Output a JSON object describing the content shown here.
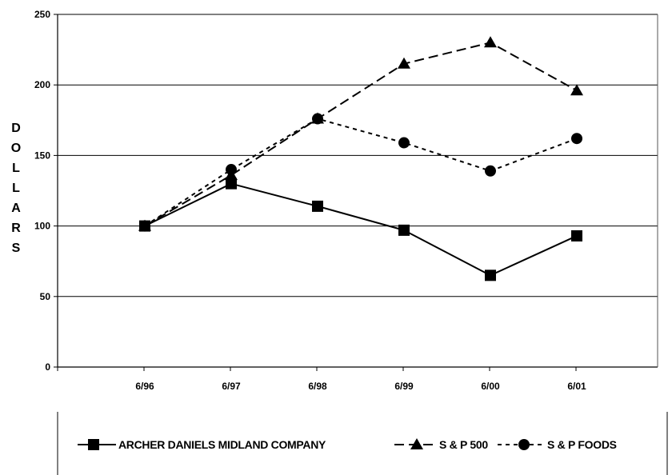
{
  "chart_data": {
    "type": "line",
    "title": "",
    "xlabel": "",
    "ylabel": "DOLLARS",
    "ylim": [
      0,
      250
    ],
    "yticks": [
      0,
      50,
      100,
      150,
      200,
      250
    ],
    "categories": [
      "6/96",
      "6/97",
      "6/98",
      "6/99",
      "6/00",
      "6/01"
    ],
    "grid": "horizontal",
    "legend_position": "bottom",
    "series": [
      {
        "name": "ARCHER DANIELS MIDLAND COMPANY",
        "marker": "square",
        "line": "solid",
        "values": [
          100,
          130,
          114,
          97,
          65,
          93
        ]
      },
      {
        "name": "S & P 500",
        "marker": "triangle",
        "line": "dashed",
        "values": [
          100,
          136,
          176,
          215,
          230,
          196
        ]
      },
      {
        "name": "S & P FOODS",
        "marker": "circle",
        "line": "dotted",
        "values": [
          100,
          140,
          176,
          159,
          139,
          162
        ]
      }
    ]
  }
}
